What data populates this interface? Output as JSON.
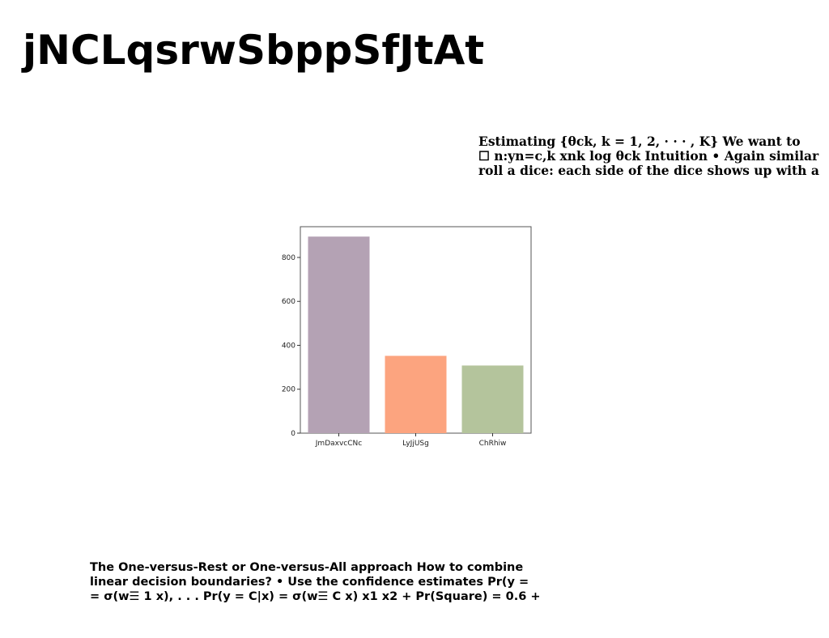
{
  "page": {
    "title": "jNCLqsrwSbppSfJtAt"
  },
  "text_top": {
    "lines": [
      "Estimating {θck, k = 1, 2, · · · , K} We want to",
      "☐ n:yn=c,k xnk log θck Intuition • Again similar",
      "roll a dice: each side of the dice shows up with a"
    ]
  },
  "text_bottom": {
    "lines": [
      "The One-versus-Rest or One-versus-All approach How to combine",
      "linear decision boundaries? • Use the confidence estimates Pr(y =",
      "= σ(w☰ 1 x), . . . Pr(y = C|x) = σ(w☰ C x) x1 x2 + Pr(Square) = 0.6 +"
    ]
  },
  "chart_data": {
    "type": "bar",
    "categories": [
      "JmDaxvcCNc",
      "LyJjUSg",
      "ChRhiw"
    ],
    "values": [
      895,
      352,
      308
    ],
    "colors": [
      "#b4a2b4",
      "#fca47f",
      "#b4c49c"
    ],
    "title": "",
    "xlabel": "",
    "ylabel": "",
    "ylim": [
      0,
      940
    ],
    "yticks": [
      0,
      200,
      400,
      600,
      800
    ],
    "grid": false
  }
}
